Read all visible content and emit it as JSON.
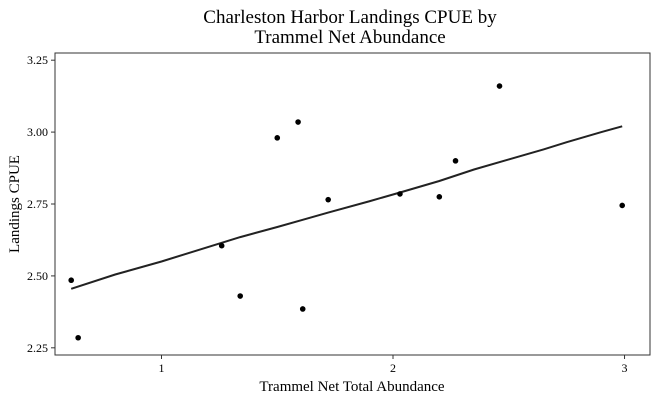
{
  "chart_data": {
    "type": "scatter",
    "title_lines": [
      "Charleston Harbor Landings CPUE by",
      "Trammel Net Abundance"
    ],
    "xlabel": "Trammel Net Total Abundance",
    "ylabel": "Landings CPUE",
    "xlim": [
      0.54,
      3.11
    ],
    "ylim": [
      2.225,
      3.275
    ],
    "x_ticks": [
      1,
      2,
      3
    ],
    "x_tick_labels": [
      "1",
      "2",
      "3"
    ],
    "y_ticks": [
      2.25,
      2.5,
      2.75,
      3.0,
      3.25
    ],
    "y_tick_labels": [
      "2.25",
      "2.50",
      "2.75",
      "3.00",
      "3.25"
    ],
    "grid": false,
    "points": [
      {
        "x": 0.61,
        "y": 2.485
      },
      {
        "x": 0.64,
        "y": 2.285
      },
      {
        "x": 1.26,
        "y": 2.605
      },
      {
        "x": 1.34,
        "y": 2.43
      },
      {
        "x": 1.5,
        "y": 2.98
      },
      {
        "x": 1.59,
        "y": 3.035
      },
      {
        "x": 1.61,
        "y": 2.385
      },
      {
        "x": 1.72,
        "y": 2.765
      },
      {
        "x": 2.03,
        "y": 2.785
      },
      {
        "x": 2.2,
        "y": 2.775
      },
      {
        "x": 2.27,
        "y": 2.9
      },
      {
        "x": 2.46,
        "y": 3.16
      },
      {
        "x": 2.99,
        "y": 2.745
      }
    ],
    "fit_line": {
      "x": [
        0.61,
        0.8,
        1.0,
        1.1,
        1.26,
        1.34,
        1.5,
        1.61,
        1.72,
        1.9,
        2.03,
        2.2,
        2.35,
        2.5,
        2.65,
        2.75,
        2.9,
        2.99
      ],
      "y": [
        2.455,
        2.505,
        2.55,
        2.575,
        2.615,
        2.635,
        2.67,
        2.695,
        2.72,
        2.76,
        2.79,
        2.83,
        2.87,
        2.905,
        2.94,
        2.965,
        3.0,
        3.02
      ]
    }
  }
}
